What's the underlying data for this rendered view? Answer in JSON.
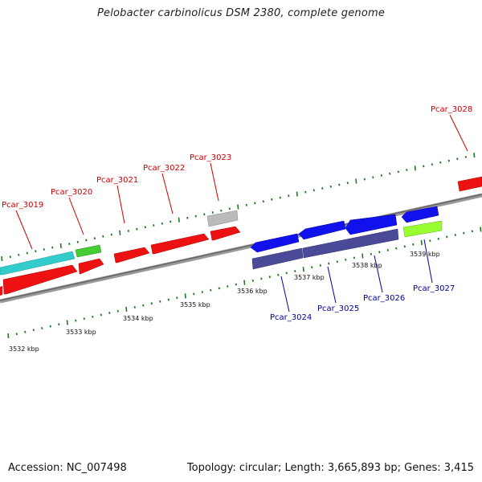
{
  "title": "Pelobacter carbinolicus DSM 2380, complete genome",
  "footer": {
    "accession": "Accession: NC_007498",
    "topology": "Topology: circular; Length: 3,665,893 bp; Genes: 3,415"
  },
  "colors": {
    "forward_gene": "#ee1111",
    "reverse_gene": "#1111ee",
    "rna_cyan": "#33cccc",
    "green": "#44cc33",
    "lime": "#99ff33",
    "grey": "#bbbbbb",
    "purple": "#4a4a99",
    "backbone": "#888888",
    "tick": "#227722",
    "label_forward": "#cc0000",
    "label_reverse": "#000099"
  },
  "kbp_labels": [
    "3532 kbp",
    "3533 kbp",
    "3534 kbp",
    "3535 kbp",
    "3536 kbp",
    "3537 kbp",
    "3538 kbp",
    "3539 kbp"
  ],
  "gene_labels_top": [
    "Pcar_3019",
    "Pcar_3020",
    "Pcar_3021",
    "Pcar_3022",
    "Pcar_3023",
    "Pcar_3028"
  ],
  "gene_labels_bottom": [
    "Pcar_3024",
    "Pcar_3025",
    "Pcar_3026",
    "Pcar_3027"
  ]
}
